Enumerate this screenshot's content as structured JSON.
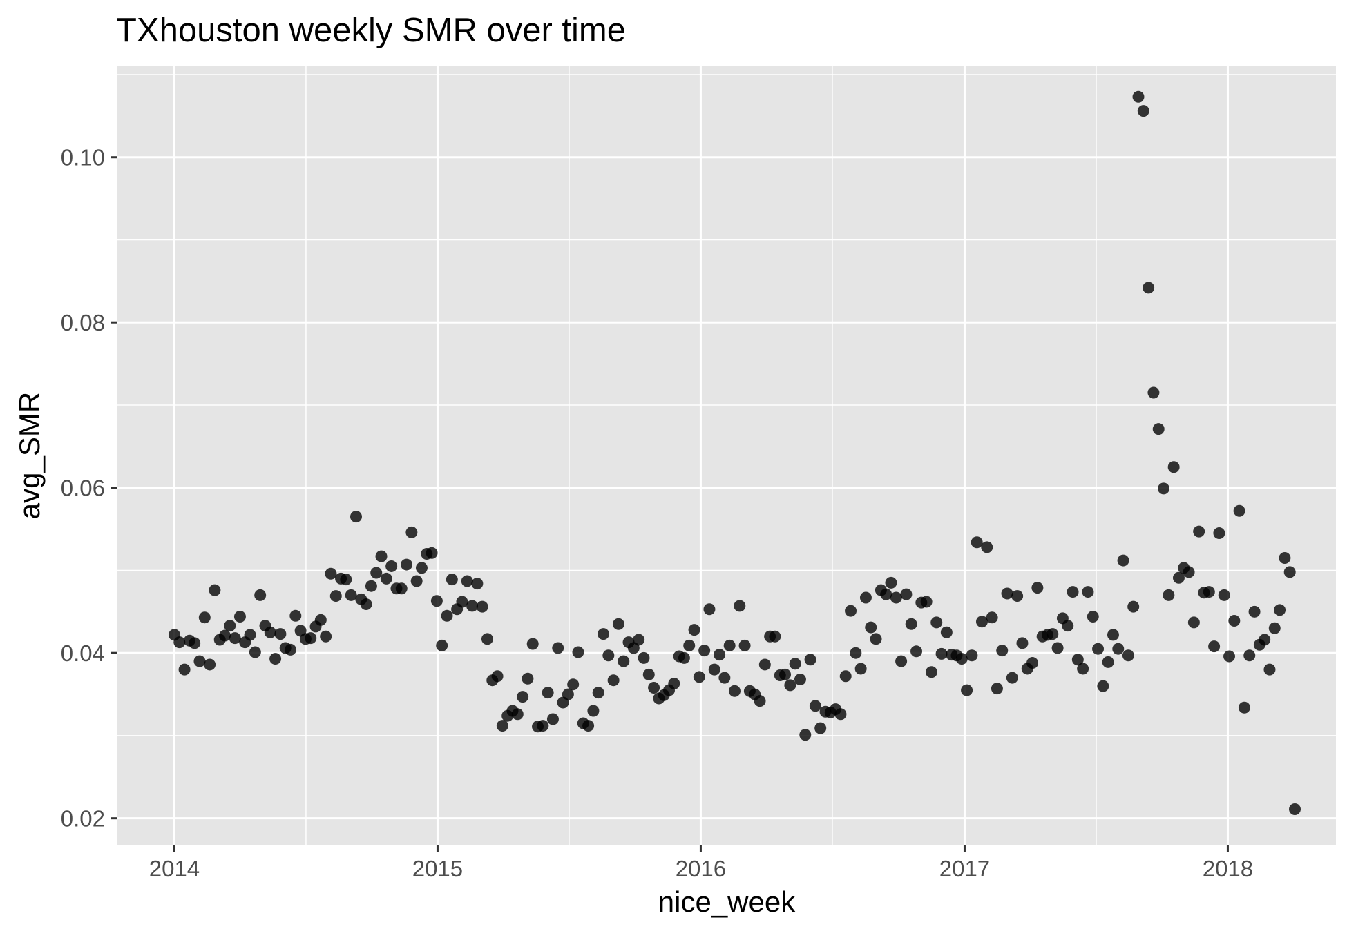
{
  "chart_data": {
    "type": "scatter",
    "title": "TXhouston weekly SMR over time",
    "xlabel": "nice_week",
    "ylabel": "avg_SMR",
    "x_ticks": [
      "2014",
      "2015",
      "2016",
      "2017",
      "2018"
    ],
    "y_ticks": [
      "0.02",
      "0.04",
      "0.06",
      "0.08",
      "0.10"
    ],
    "xlim": [
      "2013-10-14",
      "2018-05-31"
    ],
    "ylim": [
      0.0168,
      0.111
    ],
    "grid": true,
    "colors": {
      "panel": "#e5e5e5",
      "grid": "#ffffff",
      "point": "#000000"
    },
    "series": [
      {
        "x": [
          "2014-01-01",
          "2014-01-08",
          "2014-01-15",
          "2014-01-22",
          "2014-01-29",
          "2014-02-05",
          "2014-02-12",
          "2014-02-19",
          "2014-02-26",
          "2014-03-05",
          "2014-03-12",
          "2014-03-19",
          "2014-03-26",
          "2014-04-02",
          "2014-04-09",
          "2014-04-16",
          "2014-04-23",
          "2014-04-30",
          "2014-05-07",
          "2014-05-14",
          "2014-05-21",
          "2014-05-28",
          "2014-06-04",
          "2014-06-11",
          "2014-06-18",
          "2014-06-25",
          "2014-07-02",
          "2014-07-09",
          "2014-07-16",
          "2014-07-23",
          "2014-07-30",
          "2014-08-06",
          "2014-08-13",
          "2014-08-20",
          "2014-08-27",
          "2014-09-03",
          "2014-09-10",
          "2014-09-17",
          "2014-09-24",
          "2014-10-01",
          "2014-10-08",
          "2014-10-15",
          "2014-10-22",
          "2014-10-29",
          "2014-11-05",
          "2014-11-12",
          "2014-11-19",
          "2014-11-26",
          "2014-12-03",
          "2014-12-10",
          "2014-12-17",
          "2014-12-24",
          "2014-12-31",
          "2015-01-07",
          "2015-01-14",
          "2015-01-21",
          "2015-01-28",
          "2015-02-04",
          "2015-02-11",
          "2015-02-18",
          "2015-02-25",
          "2015-03-04",
          "2015-03-11",
          "2015-03-18",
          "2015-03-25",
          "2015-04-01",
          "2015-04-08",
          "2015-04-15",
          "2015-04-22",
          "2015-04-29",
          "2015-05-06",
          "2015-05-13",
          "2015-05-20",
          "2015-05-27",
          "2015-06-03",
          "2015-06-10",
          "2015-06-17",
          "2015-06-24",
          "2015-07-01",
          "2015-07-08",
          "2015-07-15",
          "2015-07-22",
          "2015-07-29",
          "2015-08-05",
          "2015-08-12",
          "2015-08-19",
          "2015-08-26",
          "2015-09-02",
          "2015-09-09",
          "2015-09-16",
          "2015-09-23",
          "2015-09-30",
          "2015-10-07",
          "2015-10-14",
          "2015-10-21",
          "2015-10-28",
          "2015-11-04",
          "2015-11-11",
          "2015-11-18",
          "2015-11-25",
          "2015-12-02",
          "2015-12-09",
          "2015-12-16",
          "2015-12-23",
          "2015-12-30",
          "2016-01-06",
          "2016-01-13",
          "2016-01-20",
          "2016-01-27",
          "2016-02-03",
          "2016-02-10",
          "2016-02-17",
          "2016-02-24",
          "2016-03-02",
          "2016-03-09",
          "2016-03-16",
          "2016-03-23",
          "2016-03-30",
          "2016-04-06",
          "2016-04-13",
          "2016-04-20",
          "2016-04-27",
          "2016-05-04",
          "2016-05-11",
          "2016-05-18",
          "2016-05-25",
          "2016-06-01",
          "2016-06-08",
          "2016-06-15",
          "2016-06-22",
          "2016-06-29",
          "2016-07-06",
          "2016-07-13",
          "2016-07-20",
          "2016-07-27",
          "2016-08-03",
          "2016-08-10",
          "2016-08-17",
          "2016-08-24",
          "2016-08-31",
          "2016-09-07",
          "2016-09-14",
          "2016-09-21",
          "2016-09-28",
          "2016-10-05",
          "2016-10-12",
          "2016-10-19",
          "2016-10-26",
          "2016-11-02",
          "2016-11-09",
          "2016-11-16",
          "2016-11-23",
          "2016-11-30",
          "2016-12-07",
          "2016-12-14",
          "2016-12-21",
          "2016-12-28",
          "2017-01-04",
          "2017-01-11",
          "2017-01-18",
          "2017-01-25",
          "2017-02-01",
          "2017-02-08",
          "2017-02-15",
          "2017-02-22",
          "2017-03-01",
          "2017-03-08",
          "2017-03-15",
          "2017-03-22",
          "2017-03-29",
          "2017-04-05",
          "2017-04-12",
          "2017-04-19",
          "2017-04-26",
          "2017-05-03",
          "2017-05-10",
          "2017-05-17",
          "2017-05-24",
          "2017-05-31",
          "2017-06-07",
          "2017-06-14",
          "2017-06-21",
          "2017-06-28",
          "2017-07-05",
          "2017-07-12",
          "2017-07-19",
          "2017-07-26",
          "2017-08-02",
          "2017-08-09",
          "2017-08-16",
          "2017-08-23",
          "2017-08-30",
          "2017-09-06",
          "2017-09-13",
          "2017-09-20",
          "2017-09-27",
          "2017-10-04",
          "2017-10-11",
          "2017-10-18",
          "2017-10-25",
          "2017-11-01",
          "2017-11-08",
          "2017-11-15",
          "2017-11-22",
          "2017-11-29",
          "2017-12-06",
          "2017-12-13",
          "2017-12-20",
          "2017-12-27",
          "2018-01-03",
          "2018-01-10",
          "2018-01-17",
          "2018-01-24",
          "2018-01-31",
          "2018-02-07",
          "2018-02-14",
          "2018-02-21",
          "2018-02-28",
          "2018-03-07",
          "2018-03-14",
          "2018-03-21",
          "2018-03-28",
          "2018-04-04"
        ],
        "y": [
          0.0422,
          0.0413,
          0.038,
          0.0415,
          0.0412,
          0.039,
          0.0443,
          0.0386,
          0.0476,
          0.0416,
          0.0421,
          0.0433,
          0.0418,
          0.0444,
          0.0413,
          0.0422,
          0.0401,
          0.047,
          0.0433,
          0.0425,
          0.0393,
          0.0423,
          0.0406,
          0.0404,
          0.0445,
          0.0427,
          0.0417,
          0.0418,
          0.0432,
          0.044,
          0.042,
          0.0496,
          0.0469,
          0.049,
          0.0489,
          0.047,
          0.0565,
          0.0465,
          0.0459,
          0.0481,
          0.0497,
          0.0517,
          0.049,
          0.0505,
          0.0478,
          0.0478,
          0.0507,
          0.0546,
          0.0487,
          0.0503,
          0.052,
          0.0521,
          0.0463,
          0.0409,
          0.0445,
          0.0489,
          0.0453,
          0.0462,
          0.0487,
          0.0457,
          0.0484,
          0.0456,
          0.0417,
          0.0367,
          0.0372,
          0.0312,
          0.0324,
          0.033,
          0.0326,
          0.0347,
          0.0369,
          0.0411,
          0.0311,
          0.0312,
          0.0352,
          0.032,
          0.0406,
          0.034,
          0.035,
          0.0362,
          0.0401,
          0.0315,
          0.0312,
          0.033,
          0.0352,
          0.0423,
          0.0397,
          0.0367,
          0.0435,
          0.039,
          0.0413,
          0.0406,
          0.0416,
          0.0394,
          0.0374,
          0.0358,
          0.0345,
          0.0349,
          0.0355,
          0.0363,
          0.0396,
          0.0394,
          0.0409,
          0.0428,
          0.0371,
          0.0403,
          0.0453,
          0.038,
          0.0398,
          0.037,
          0.0409,
          0.0354,
          0.0457,
          0.0409,
          0.0354,
          0.035,
          0.0342,
          0.0386,
          0.042,
          0.042,
          0.0373,
          0.0374,
          0.0361,
          0.0387,
          0.0368,
          0.0301,
          0.0392,
          0.0336,
          0.0309,
          0.0329,
          0.0328,
          0.0332,
          0.0326,
          0.0372,
          0.0451,
          0.04,
          0.0381,
          0.0467,
          0.0431,
          0.0417,
          0.0476,
          0.0471,
          0.0485,
          0.0467,
          0.039,
          0.0471,
          0.0435,
          0.0402,
          0.0461,
          0.0462,
          0.0377,
          0.0437,
          0.0399,
          0.0425,
          0.0398,
          0.0397,
          0.0393,
          0.0355,
          0.0397,
          0.0534,
          0.0438,
          0.0528,
          0.0443,
          0.0357,
          0.0403,
          0.0472,
          0.037,
          0.0469,
          0.0412,
          0.0381,
          0.0388,
          0.0479,
          0.042,
          0.0422,
          0.0423,
          0.0406,
          0.0442,
          0.0433,
          0.0474,
          0.0392,
          0.0381,
          0.0474,
          0.0444,
          0.0405,
          0.036,
          0.0389,
          0.0422,
          0.0405,
          0.0512,
          0.0397,
          0.0456,
          0.1073,
          0.1056,
          0.0842,
          0.0715,
          0.0671,
          0.0599,
          0.047,
          0.0625,
          0.0491,
          0.0503,
          0.0498,
          0.0437,
          0.0547,
          0.0473,
          0.0474,
          0.0408,
          0.0545,
          0.047,
          0.0396,
          0.0439,
          0.0572,
          0.0334,
          0.0397,
          0.045,
          0.041,
          0.0416,
          0.038,
          0.043,
          0.0452,
          0.0515,
          0.0498,
          0.0211
        ]
      }
    ]
  }
}
